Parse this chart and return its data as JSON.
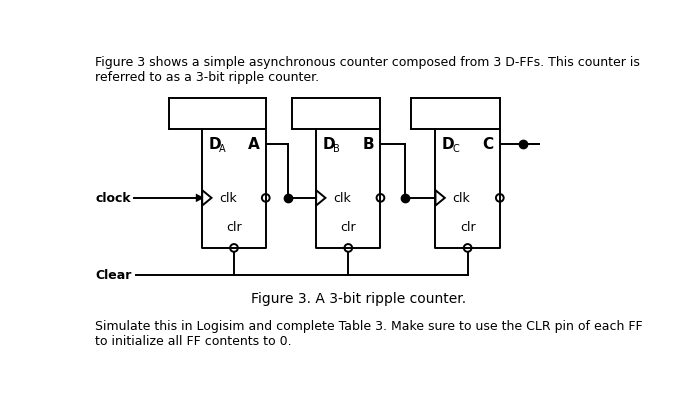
{
  "bg_color": "#ffffff",
  "text_color": "#000000",
  "line_color": "#000000",
  "title_text": "Figure 3 shows a simple asynchronous counter composed from 3 D-FFs. This counter is\nreferred to as a 3-bit ripple counter.",
  "caption": "Figure 3. A 3-bit ripple counter.",
  "bottom_text": "Simulate this in Logisim and complete Table 3. Make sure to use the CLR pin of each FF\nto initialize all FF contents to 0.",
  "ff_labels": [
    {
      "D_sub": "A",
      "Q": "A"
    },
    {
      "D_sub": "B",
      "Q": "B"
    },
    {
      "D_sub": "C",
      "Q": "C"
    }
  ],
  "font_size_main": 9,
  "font_size_caption": 10
}
